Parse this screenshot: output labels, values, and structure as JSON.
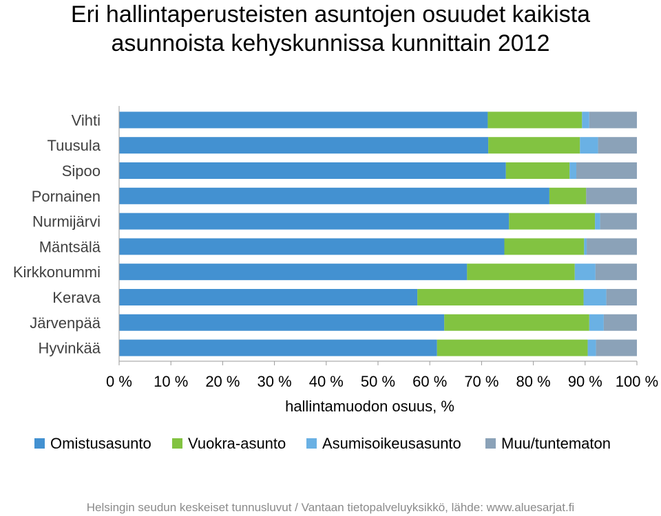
{
  "title_line1": "Eri hallintaperusteisten asuntojen osuudet kaikista",
  "title_line2": "asunnoista kehyskunnissa kunnittain 2012",
  "footer": "Helsingin seudun keskeiset tunnusluvut / Vantaan tietopalveluyksikkö, lähde: www.aluesarjat.fi",
  "chart_data": {
    "type": "bar",
    "orientation": "horizontal",
    "stacked": true,
    "percent_stacked": true,
    "categories": [
      "Vihti",
      "Tuusula",
      "Sipoo",
      "Pornainen",
      "Nurmijärvi",
      "Mäntsälä",
      "Kirkkonummi",
      "Kerava",
      "Järvenpää",
      "Hyvinkää"
    ],
    "series": [
      {
        "name": "Omistusasunto",
        "color": "#4391d1",
        "values": [
          71.2,
          71.3,
          74.7,
          83.1,
          75.3,
          74.4,
          67.2,
          57.6,
          62.8,
          61.4
        ]
      },
      {
        "name": "Vuokra-asunto",
        "color": "#82c341",
        "values": [
          18.2,
          17.7,
          12.3,
          7.1,
          16.6,
          15.4,
          20.8,
          32.1,
          28.0,
          29.1
        ]
      },
      {
        "name": "Asumisoikeusasunto",
        "color": "#6ab1e4",
        "values": [
          1.4,
          3.5,
          1.3,
          0.0,
          1.0,
          0.5,
          4.0,
          4.4,
          2.8,
          1.6
        ]
      },
      {
        "name": "Muu/tuntematon",
        "color": "#8ba2b8",
        "values": [
          9.2,
          7.5,
          11.7,
          9.8,
          7.1,
          9.7,
          8.0,
          5.9,
          6.4,
          7.9
        ]
      }
    ],
    "xlabel": "hallintamuodon osuus, %",
    "ylabel": "",
    "xlim": [
      0,
      100
    ],
    "xticks": [
      "0 %",
      "10 %",
      "20 %",
      "30 %",
      "40 %",
      "50 %",
      "60 %",
      "70 %",
      "80 %",
      "90 %",
      "100 %"
    ],
    "grid": false,
    "legend_position": "bottom"
  }
}
